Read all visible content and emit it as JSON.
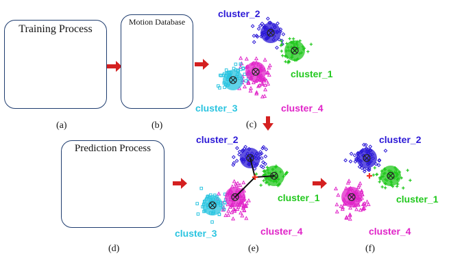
{
  "panels": {
    "training": {
      "title": "Training Process",
      "sublabel": "(a)"
    },
    "database": {
      "title": "Motion Database",
      "sublabel": "(b)"
    },
    "clusters_c": {
      "sublabel": "(c)"
    },
    "prediction": {
      "title": "Prediction Process",
      "sublabel": "(d)"
    },
    "clusters_e": {
      "sublabel": "(e)"
    },
    "clusters_f": {
      "sublabel": "(f)"
    }
  },
  "clusters": [
    {
      "name": "cluster_2",
      "color": "#2b18d6",
      "marker": "diamond"
    },
    {
      "name": "cluster_1",
      "color": "#22c81e",
      "marker": "plus"
    },
    {
      "name": "cluster_3",
      "color": "#2ac4e0",
      "marker": "square"
    },
    {
      "name": "cluster_4",
      "color": "#e024c8",
      "marker": "triangle"
    }
  ],
  "colors": {
    "arrow": "#d42020",
    "box_border": "#1d3b6e",
    "query_point": "#f03020",
    "connector": "#111111"
  }
}
